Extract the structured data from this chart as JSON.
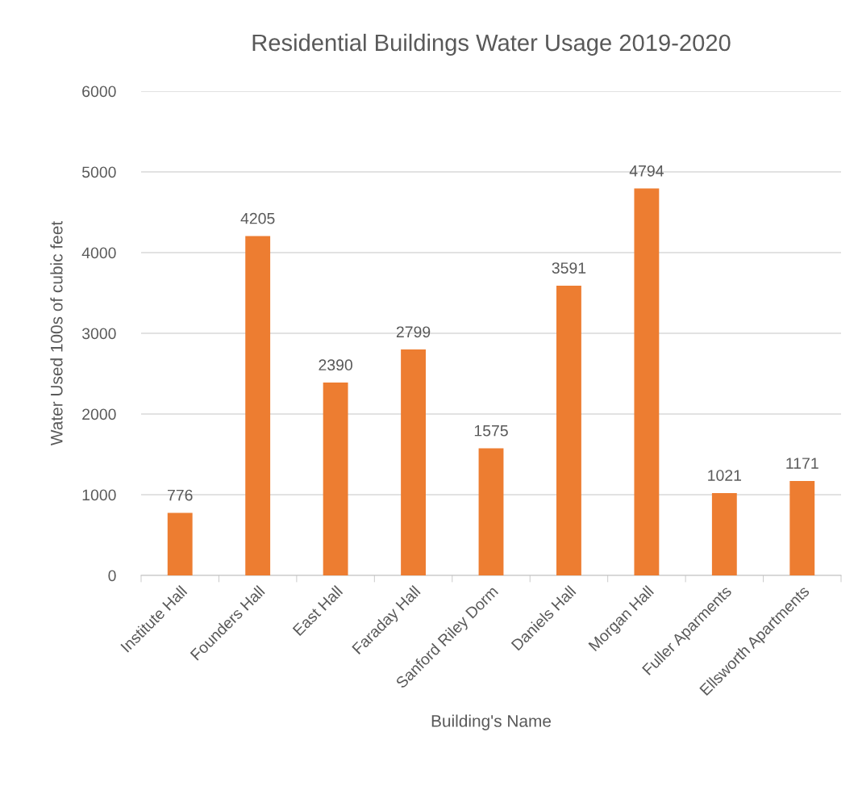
{
  "chart_data": {
    "type": "bar",
    "title": "Residential Buildings Water Usage 2019-2020",
    "xlabel": "Building's Name",
    "ylabel": "Water Used 100s of cubic feet",
    "categories": [
      "Institute Hall",
      "Founders Hall",
      "East Hall",
      "Faraday Hall",
      "Sanford Riley Dorm",
      "Daniels Hall",
      "Morgan Hall",
      "Fuller Aparments",
      "Ellsworth Apartments"
    ],
    "values": [
      776,
      4205,
      2390,
      2799,
      1575,
      3591,
      4794,
      1021,
      1171
    ],
    "color": "#ed7d31",
    "ylim": [
      0,
      6000
    ],
    "yticks": [
      0,
      1000,
      2000,
      3000,
      4000,
      5000,
      6000
    ],
    "grid": "y",
    "data_labels": true,
    "legend": false
  }
}
